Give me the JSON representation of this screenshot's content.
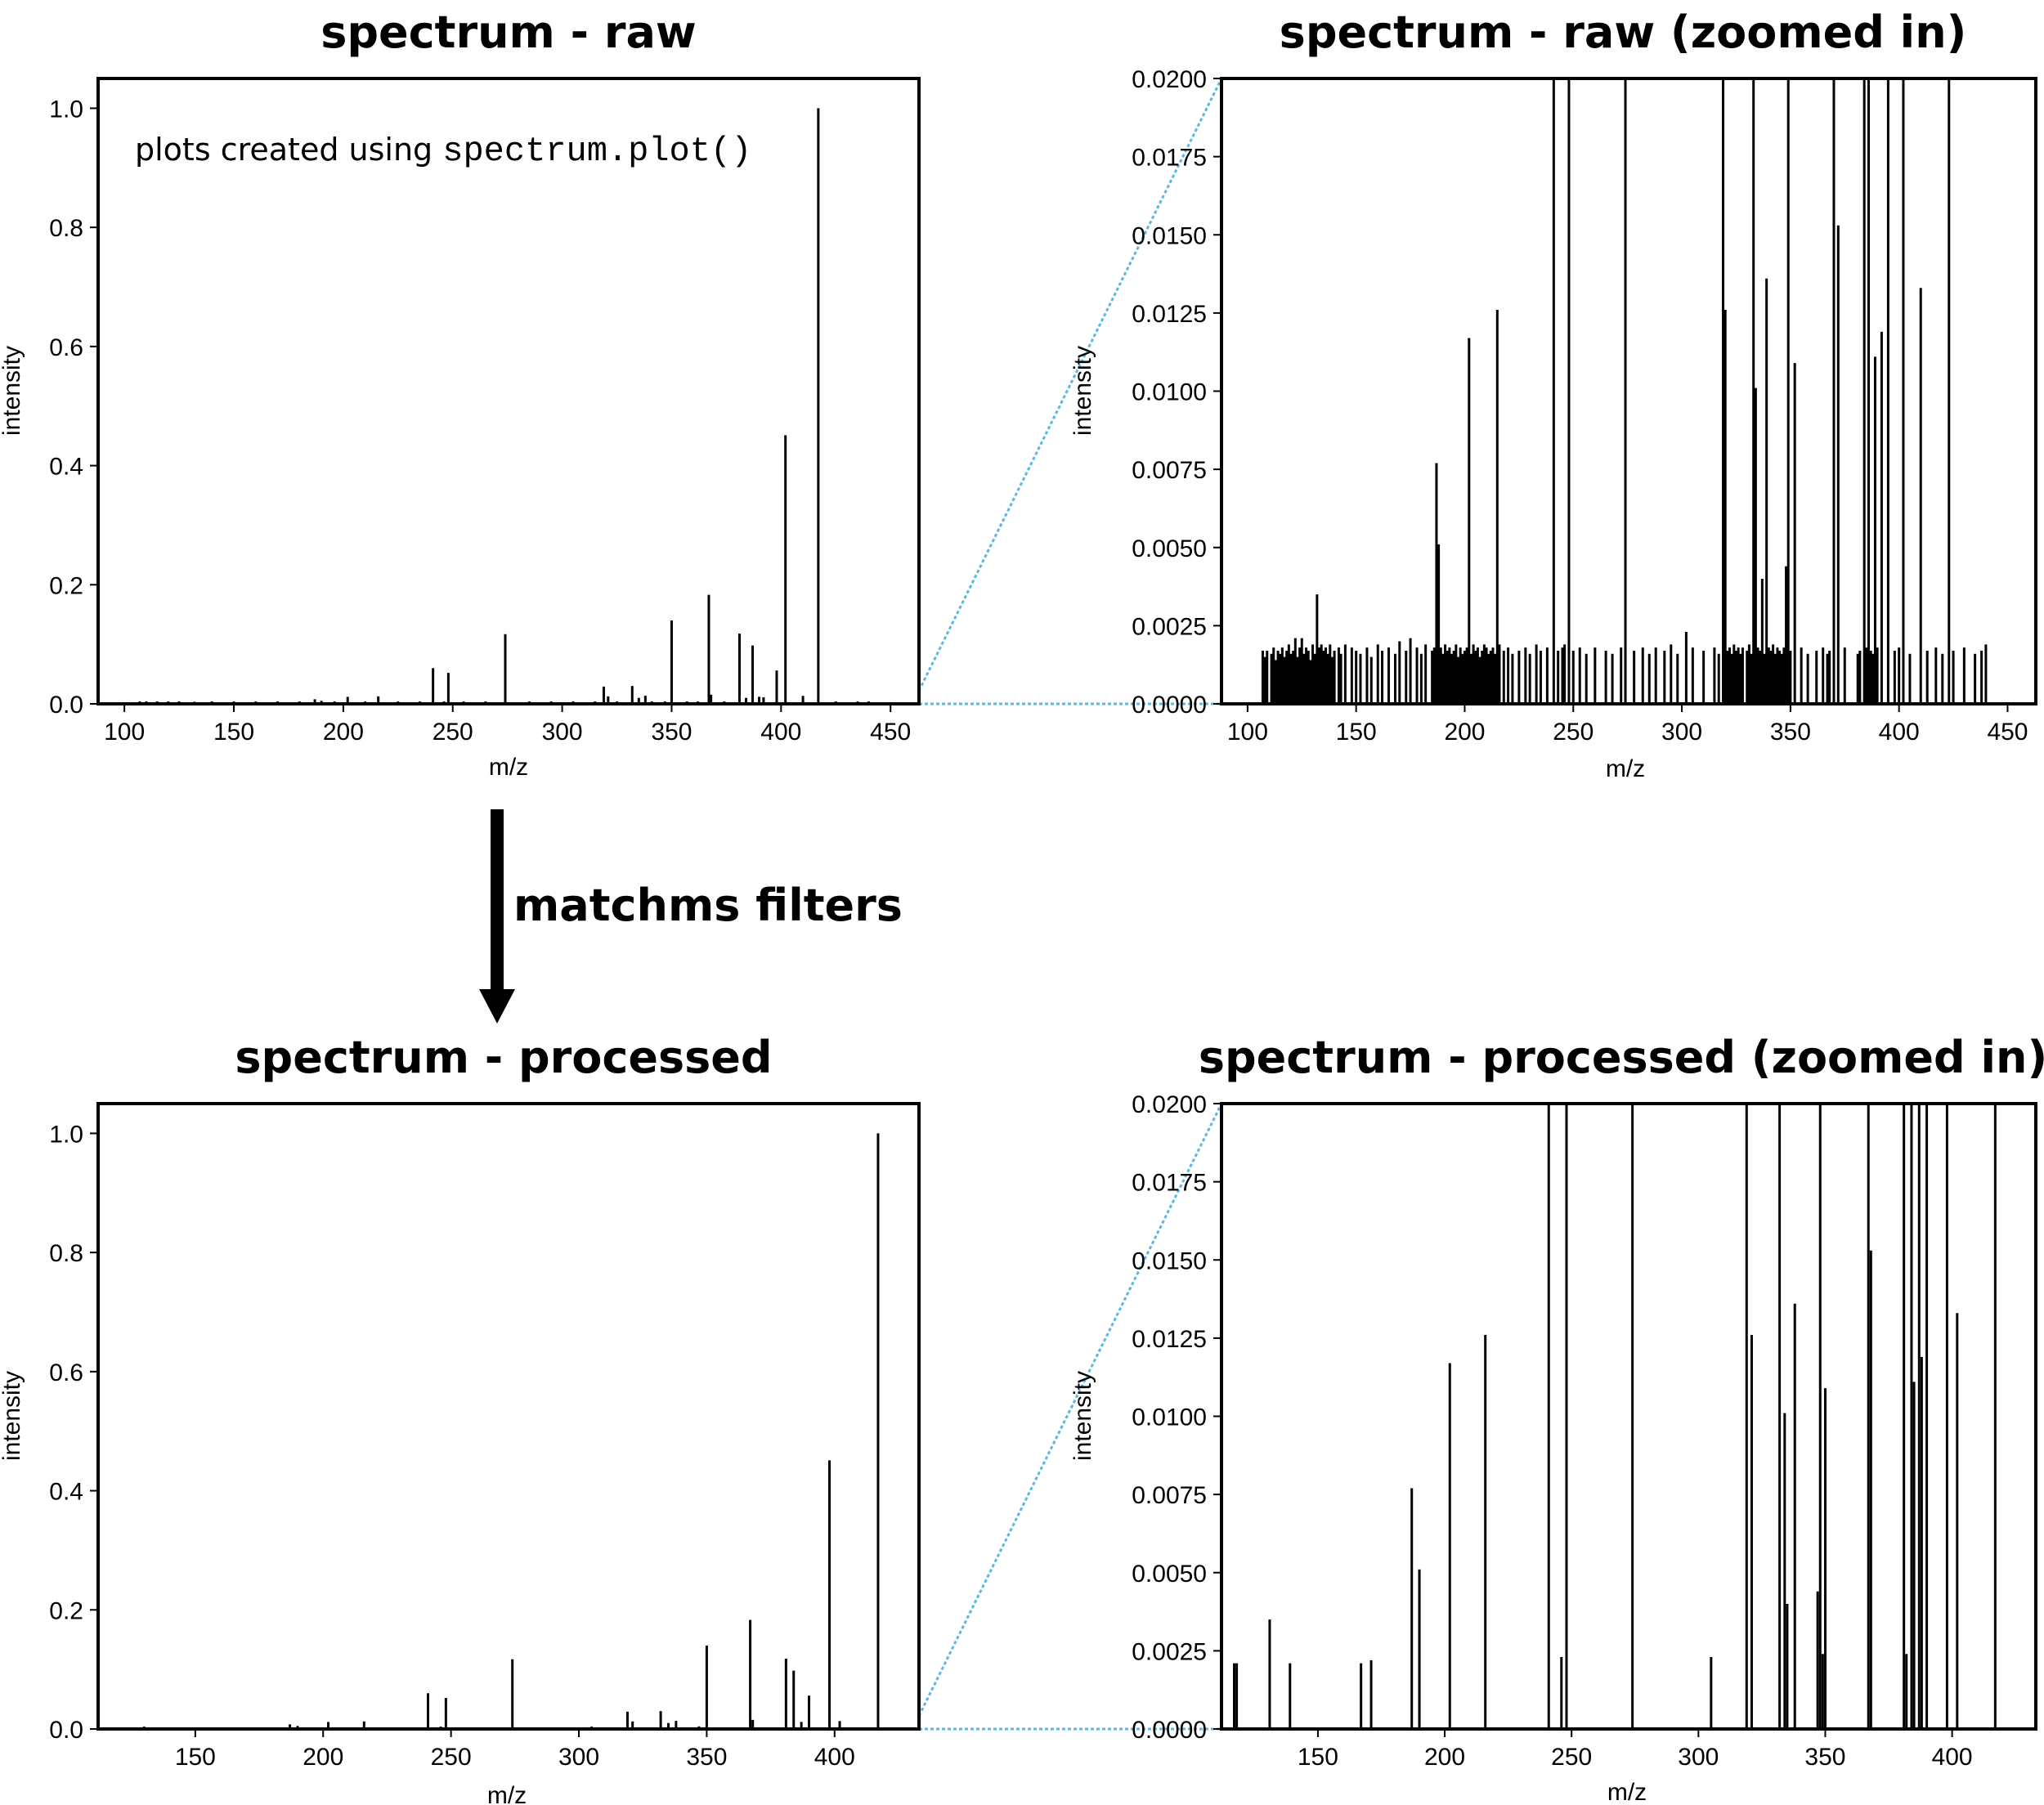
{
  "annotation": {
    "prefix": "plots created using ",
    "code": "spectrum.plot()"
  },
  "arrow_label": "matchms filters",
  "colors": {
    "bars": "#000000",
    "zoom_lines": "#5bb8e0"
  },
  "chart_data": [
    {
      "type": "bar",
      "title": "spectrum - raw",
      "xlabel": "m/z",
      "ylabel": "intensity",
      "xlim": [
        88,
        463
      ],
      "ylim": [
        0,
        1.05
      ],
      "xticks": [
        "100",
        "150",
        "200",
        "250",
        "300",
        "350",
        "400",
        "450"
      ],
      "yticks": [
        "0.0",
        "0.2",
        "0.4",
        "0.6",
        "0.8",
        "1.0"
      ],
      "peaks_mz": [
        107,
        110,
        115,
        120,
        125,
        132,
        140,
        150,
        160,
        170,
        180,
        187,
        190,
        196,
        202,
        210,
        216,
        225,
        235,
        241,
        246,
        248,
        255,
        265,
        274,
        285,
        295,
        305,
        315,
        319,
        321,
        325,
        332,
        335,
        338,
        341,
        347,
        350,
        357,
        362,
        367,
        368,
        374,
        381,
        384,
        387,
        390,
        392,
        398,
        402,
        410,
        417,
        425,
        435,
        440
      ],
      "peaks_intensity": [
        0.004,
        0.004,
        0.004,
        0.004,
        0.004,
        0.0035,
        0.004,
        0.004,
        0.004,
        0.004,
        0.004,
        0.0077,
        0.0051,
        0.004,
        0.0117,
        0.004,
        0.0126,
        0.004,
        0.004,
        0.06,
        0.004,
        0.052,
        0.004,
        0.004,
        0.117,
        0.004,
        0.004,
        0.004,
        0.004,
        0.029,
        0.0126,
        0.004,
        0.03,
        0.01,
        0.0136,
        0.004,
        0.004,
        0.14,
        0.004,
        0.004,
        0.183,
        0.0153,
        0.004,
        0.118,
        0.01,
        0.098,
        0.0118,
        0.011,
        0.056,
        0.451,
        0.0133,
        1.0,
        0.004,
        0.004,
        0.004
      ]
    },
    {
      "type": "bar",
      "title": "spectrum - raw (zoomed in)",
      "xlabel": "m/z",
      "ylabel": "intensity",
      "xlim": [
        88,
        463
      ],
      "ylim": [
        0,
        0.02
      ],
      "xticks": [
        "100",
        "150",
        "200",
        "250",
        "300",
        "350",
        "400",
        "450"
      ],
      "yticks": [
        "0.0000",
        "0.0025",
        "0.0050",
        "0.0075",
        "0.0100",
        "0.0125",
        "0.0150",
        "0.0175",
        "0.0200"
      ],
      "peaks_mz": [
        107,
        108,
        109,
        111,
        112,
        113,
        114,
        115,
        116,
        117,
        118,
        119,
        120,
        121,
        122,
        123,
        124,
        125,
        126,
        127,
        128,
        129,
        130,
        131,
        132,
        133,
        134,
        135,
        136,
        137,
        138,
        139,
        140,
        142,
        143,
        145,
        148,
        150,
        152,
        155,
        157,
        160,
        162,
        165,
        168,
        170,
        173,
        175,
        178,
        180,
        182,
        185,
        186,
        187,
        188,
        189,
        190,
        191,
        192,
        193,
        194,
        195,
        196,
        197,
        198,
        199,
        200,
        201,
        202,
        203,
        204,
        205,
        206,
        207,
        208,
        209,
        210,
        211,
        212,
        213,
        214,
        215,
        216,
        218,
        220,
        222,
        225,
        228,
        230,
        233,
        235,
        238,
        241,
        243,
        245,
        246,
        248,
        250,
        253,
        256,
        260,
        265,
        268,
        272,
        274,
        278,
        282,
        285,
        288,
        292,
        295,
        298,
        302,
        305,
        310,
        315,
        317,
        319,
        320,
        321,
        322,
        323,
        324,
        325,
        326,
        327,
        328,
        330,
        331,
        332,
        333,
        334,
        335,
        336,
        337,
        338,
        339,
        340,
        341,
        342,
        343,
        344,
        345,
        346,
        347,
        348,
        349,
        350,
        352,
        355,
        358,
        362,
        365,
        367,
        368,
        370,
        372,
        375,
        381,
        382,
        384,
        385,
        386,
        387,
        388,
        389,
        390,
        392,
        395,
        398,
        400,
        402,
        405,
        410,
        413,
        417,
        420,
        423,
        425,
        430,
        435,
        438,
        440
      ],
      "peaks_intensity": [
        0.0017,
        0.0015,
        0.0017,
        0.0016,
        0.0018,
        0.0014,
        0.0017,
        0.0016,
        0.0018,
        0.0015,
        0.0017,
        0.0019,
        0.0016,
        0.0017,
        0.0021,
        0.0015,
        0.0018,
        0.0021,
        0.0016,
        0.0018,
        0.0017,
        0.0014,
        0.0019,
        0.0016,
        0.0035,
        0.0018,
        0.0019,
        0.0017,
        0.0018,
        0.0016,
        0.0019,
        0.0015,
        0.0017,
        0.0018,
        0.0016,
        0.0019,
        0.0018,
        0.0017,
        0.0016,
        0.0018,
        0.0015,
        0.0019,
        0.0017,
        0.0018,
        0.0016,
        0.002,
        0.0017,
        0.0021,
        0.0018,
        0.0016,
        0.0019,
        0.0017,
        0.0018,
        0.0077,
        0.0051,
        0.0018,
        0.0016,
        0.0019,
        0.0017,
        0.0018,
        0.0016,
        0.0017,
        0.0019,
        0.0015,
        0.0018,
        0.0016,
        0.0017,
        0.0018,
        0.0117,
        0.0016,
        0.0019,
        0.0017,
        0.0018,
        0.0015,
        0.0017,
        0.0019,
        0.0018,
        0.0016,
        0.0017,
        0.0018,
        0.0016,
        0.0126,
        0.0019,
        0.0017,
        0.0018,
        0.0016,
        0.0017,
        0.0018,
        0.0016,
        0.0019,
        0.0017,
        0.0018,
        0.02,
        0.0017,
        0.0018,
        0.0019,
        0.02,
        0.0017,
        0.0018,
        0.0016,
        0.0018,
        0.0017,
        0.0016,
        0.0018,
        0.02,
        0.0017,
        0.0018,
        0.0016,
        0.0018,
        0.0017,
        0.0019,
        0.0016,
        0.0023,
        0.0018,
        0.0017,
        0.0018,
        0.0016,
        0.02,
        0.0126,
        0.0017,
        0.0018,
        0.0016,
        0.0019,
        0.0017,
        0.0018,
        0.0016,
        0.0018,
        0.0017,
        0.0019,
        0.0016,
        0.02,
        0.0101,
        0.0018,
        0.0017,
        0.004,
        0.0016,
        0.0136,
        0.0018,
        0.0017,
        0.0019,
        0.0016,
        0.0018,
        0.0017,
        0.0016,
        0.0018,
        0.0044,
        0.02,
        0.0017,
        0.0109,
        0.0018,
        0.0016,
        0.0017,
        0.0018,
        0.0016,
        0.0017,
        0.02,
        0.0153,
        0.0018,
        0.0016,
        0.0017,
        0.02,
        0.0018,
        0.02,
        0.0017,
        0.0016,
        0.0111,
        0.0018,
        0.0119,
        0.02,
        0.0017,
        0.0018,
        0.02,
        0.0016,
        0.0133,
        0.0017,
        0.0018,
        0.0016,
        0.02,
        0.0017,
        0.0018,
        0.0016,
        0.0017,
        0.0019,
        0.0016,
        0.0018
      ]
    },
    {
      "type": "bar",
      "title": "spectrum - processed",
      "xlabel": "m/z",
      "ylabel": "intensity",
      "xlim": [
        112,
        433
      ],
      "ylim": [
        0,
        1.05
      ],
      "xticks": [
        "150",
        "200",
        "250",
        "300",
        "350",
        "400"
      ],
      "yticks": [
        "0.0",
        "0.2",
        "0.4",
        "0.6",
        "0.8",
        "1.0"
      ],
      "peaks_mz": [
        130,
        187,
        190,
        202,
        216,
        241,
        246,
        248,
        274,
        305,
        319,
        321,
        332,
        335,
        338,
        347,
        350,
        367,
        368,
        381,
        384,
        387,
        390,
        398,
        402,
        417
      ],
      "peaks_intensity": [
        0.004,
        0.0077,
        0.0051,
        0.0117,
        0.0126,
        0.06,
        0.004,
        0.052,
        0.117,
        0.004,
        0.029,
        0.0126,
        0.03,
        0.01,
        0.0136,
        0.0044,
        0.14,
        0.183,
        0.0153,
        0.118,
        0.098,
        0.0118,
        0.056,
        0.451,
        0.0133,
        1.0
      ]
    },
    {
      "type": "bar",
      "title": "spectrum - processed (zoomed in)",
      "xlabel": "m/z",
      "ylabel": "intensity",
      "xlim": [
        112,
        433
      ],
      "ylim": [
        0,
        0.02
      ],
      "xticks": [
        "150",
        "200",
        "250",
        "300",
        "350",
        "400"
      ],
      "yticks": [
        "0.0000",
        "0.0025",
        "0.0050",
        "0.0075",
        "0.0100",
        "0.0125",
        "0.0150",
        "0.0175",
        "0.0200"
      ],
      "peaks_mz": [
        117,
        118,
        131,
        139,
        167,
        171,
        187,
        190,
        202,
        216,
        241,
        246,
        248,
        274,
        305,
        319,
        321,
        332,
        334,
        335,
        338,
        347,
        348,
        349,
        350,
        367,
        368,
        381,
        382,
        384,
        385,
        387,
        388,
        390,
        398,
        402,
        417
      ],
      "peaks_intensity": [
        0.0021,
        0.0021,
        0.0035,
        0.0021,
        0.0021,
        0.0022,
        0.0077,
        0.0051,
        0.0117,
        0.0126,
        0.02,
        0.0023,
        0.02,
        0.02,
        0.0023,
        0.02,
        0.0126,
        0.02,
        0.0101,
        0.004,
        0.0136,
        0.0044,
        0.02,
        0.0024,
        0.0109,
        0.02,
        0.0153,
        0.02,
        0.0024,
        0.02,
        0.0111,
        0.02,
        0.0119,
        0.02,
        0.02,
        0.0133,
        0.02
      ]
    }
  ]
}
